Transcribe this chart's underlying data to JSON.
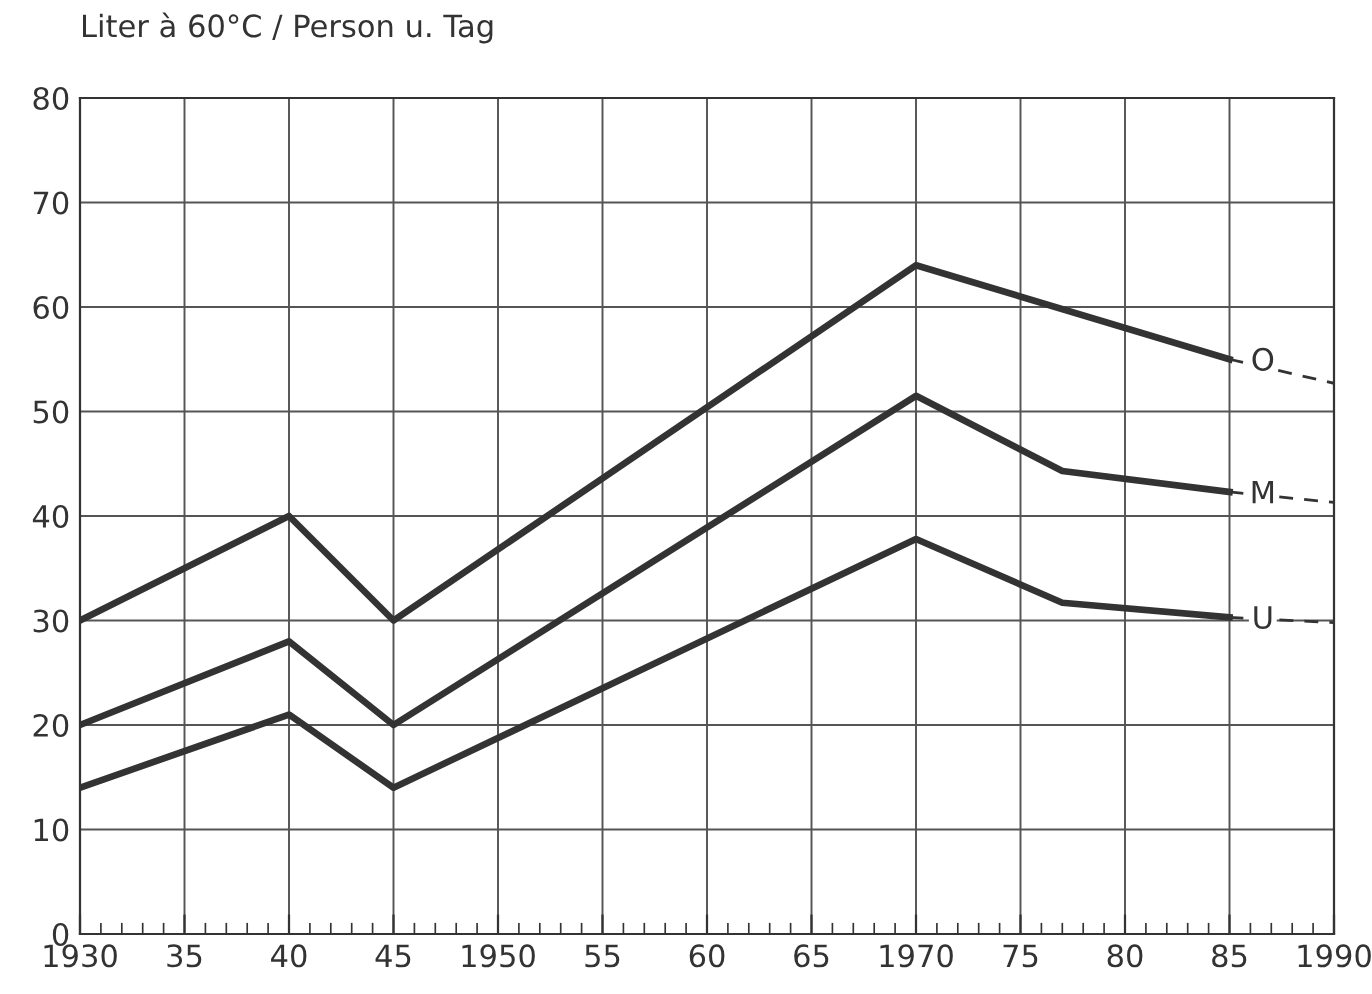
{
  "chart_data": {
    "type": "line",
    "ylabel": "Liter à 60°C / Person u. Tag",
    "series": [
      {
        "name": "O",
        "color": "#333333",
        "x": [
          1930,
          1940,
          1945,
          1970,
          1985
        ],
        "values": [
          30,
          40,
          30,
          64,
          55
        ],
        "line_style": "solid"
      },
      {
        "name": "M",
        "color": "#333333",
        "x": [
          1930,
          1940,
          1945,
          1970,
          1977,
          1985
        ],
        "values": [
          20,
          28,
          20,
          51.5,
          44.3,
          42.3
        ],
        "line_style": "solid"
      },
      {
        "name": "U",
        "color": "#333333",
        "x": [
          1930,
          1940,
          1945,
          1970,
          1977,
          1985
        ],
        "values": [
          14,
          21,
          14,
          37.8,
          31.7,
          30.3
        ],
        "line_style": "solid"
      },
      {
        "color": "#333333",
        "x": [
          1985,
          1990
        ],
        "values": [
          55,
          52.7
        ],
        "line_style": "dashed"
      },
      {
        "color": "#333333",
        "x": [
          1985,
          1990
        ],
        "values": [
          42.3,
          41.3
        ],
        "line_style": "dashed"
      },
      {
        "color": "#333333",
        "x": [
          1985,
          1990
        ],
        "values": [
          30.3,
          29.8
        ],
        "line_style": "dashed"
      }
    ],
    "xlim": [
      1930,
      1990
    ],
    "xticks": [
      {
        "value": 1930,
        "label": "1930"
      },
      {
        "value": 1935,
        "label": "35"
      },
      {
        "value": 1940,
        "label": "40"
      },
      {
        "value": 1945,
        "label": "45"
      },
      {
        "value": 1950,
        "label": "1950"
      },
      {
        "value": 1955,
        "label": "55"
      },
      {
        "value": 1960,
        "label": "60"
      },
      {
        "value": 1965,
        "label": "65"
      },
      {
        "value": 1970,
        "label": "1970"
      },
      {
        "value": 1975,
        "label": "75"
      },
      {
        "value": 1980,
        "label": "80"
      },
      {
        "value": 1985,
        "label": "85"
      },
      {
        "value": 1990,
        "label": "1990"
      },
      {
        "value": 1931,
        "label": null
      },
      {
        "value": 1932,
        "label": null
      },
      {
        "value": 1933,
        "label": null
      },
      {
        "value": 1934,
        "label": null
      },
      {
        "value": 1936,
        "label": null
      },
      {
        "value": 1937,
        "label": null
      },
      {
        "value": 1938,
        "label": null
      },
      {
        "value": 1939,
        "label": null
      },
      {
        "value": 1941,
        "label": null
      },
      {
        "value": 1942,
        "label": null
      },
      {
        "value": 1943,
        "label": null
      },
      {
        "value": 1944,
        "label": null
      },
      {
        "value": 1946,
        "label": null
      },
      {
        "value": 1947,
        "label": null
      },
      {
        "value": 1948,
        "label": null
      },
      {
        "value": 1949,
        "label": null
      },
      {
        "value": 1951,
        "label": null
      },
      {
        "value": 1952,
        "label": null
      },
      {
        "value": 1953,
        "label": null
      },
      {
        "value": 1954,
        "label": null
      },
      {
        "value": 1956,
        "label": null
      },
      {
        "value": 1957,
        "label": null
      },
      {
        "value": 1958,
        "label": null
      },
      {
        "value": 1959,
        "label": null
      },
      {
        "value": 1961,
        "label": null
      },
      {
        "value": 1962,
        "label": null
      },
      {
        "value": 1963,
        "label": null
      },
      {
        "value": 1964,
        "label": null
      },
      {
        "value": 1966,
        "label": null
      },
      {
        "value": 1967,
        "label": null
      },
      {
        "value": 1968,
        "label": null
      },
      {
        "value": 1969,
        "label": null
      },
      {
        "value": 1971,
        "label": null
      },
      {
        "value": 1972,
        "label": null
      },
      {
        "value": 1973,
        "label": null
      },
      {
        "value": 1974,
        "label": null
      },
      {
        "value": 1976,
        "label": null
      },
      {
        "value": 1977,
        "label": null
      },
      {
        "value": 1978,
        "label": null
      },
      {
        "value": 1979,
        "label": null
      },
      {
        "value": 1981,
        "label": null
      },
      {
        "value": 1982,
        "label": null
      },
      {
        "value": 1983,
        "label": null
      },
      {
        "value": 1984,
        "label": null
      },
      {
        "value": 1986,
        "label": null
      },
      {
        "value": 1987,
        "label": null
      },
      {
        "value": 1988,
        "label": null
      },
      {
        "value": 1989,
        "label": null
      }
    ],
    "ylim": [
      0,
      80
    ],
    "yticks": [
      0,
      10,
      20,
      30,
      40,
      50,
      60,
      70,
      80
    ],
    "grid": true
  }
}
